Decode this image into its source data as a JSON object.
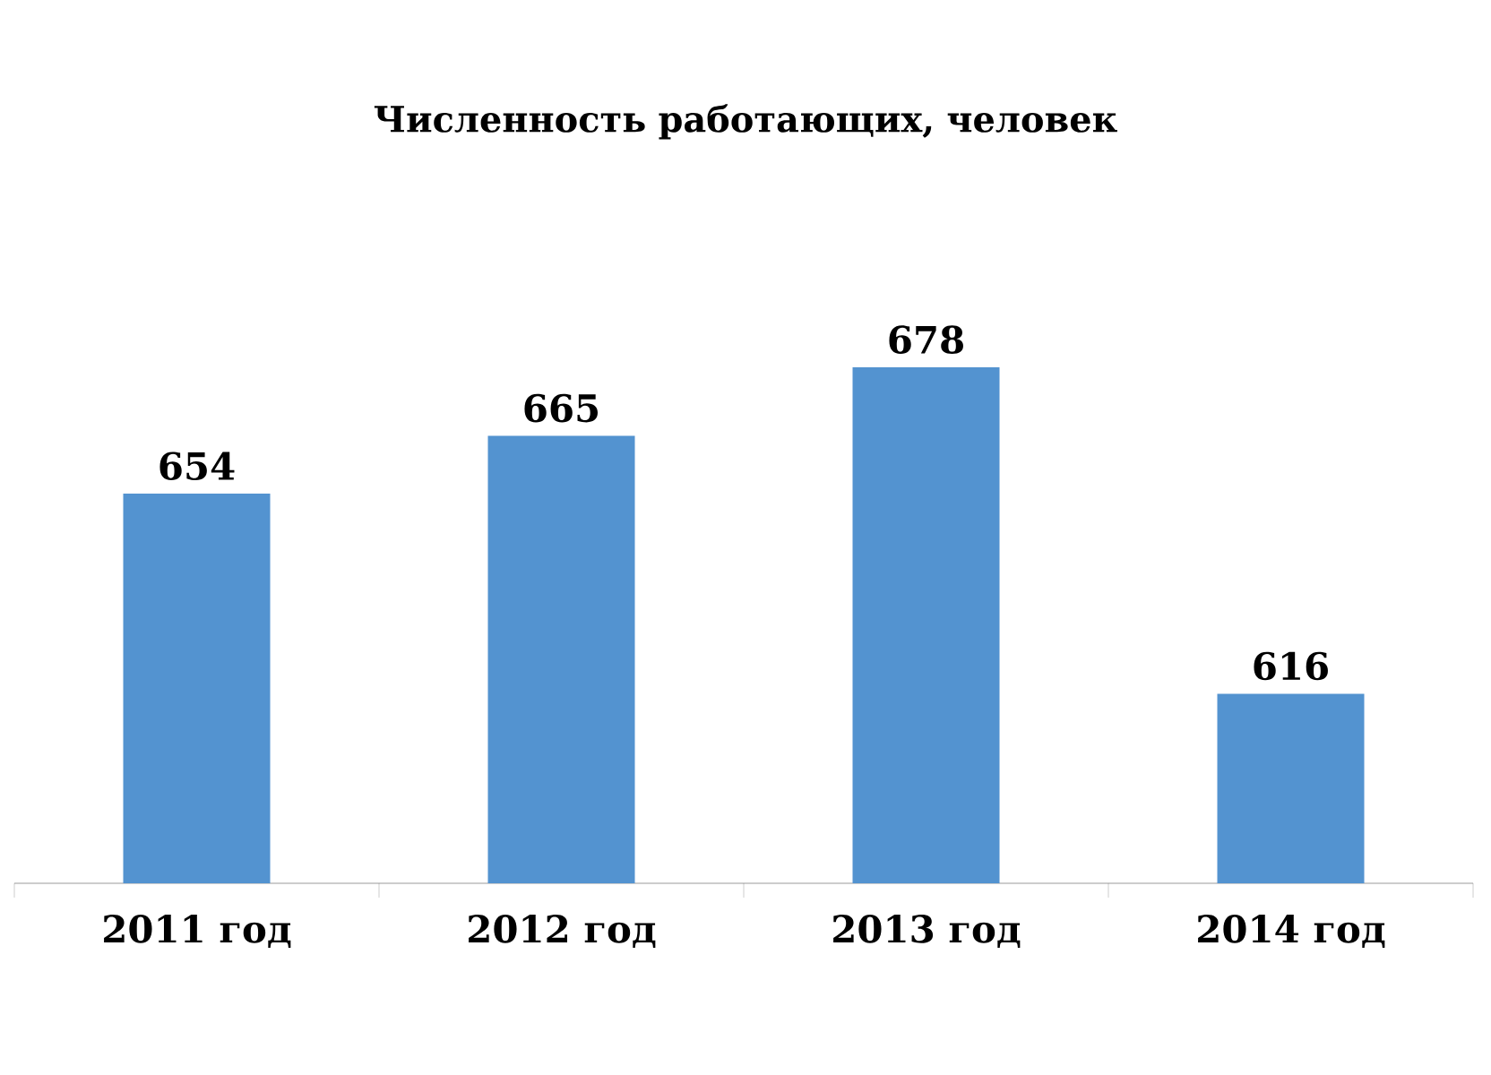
{
  "chart_data": {
    "type": "bar",
    "title": "Численность работающих, человек",
    "categories": [
      "2011 год",
      "2012 год",
      "2013 год",
      "2014 год"
    ],
    "values": [
      654,
      665,
      678,
      616
    ],
    "color": "#5393d0",
    "ylim": [
      580,
      678
    ],
    "data_labels": true
  }
}
